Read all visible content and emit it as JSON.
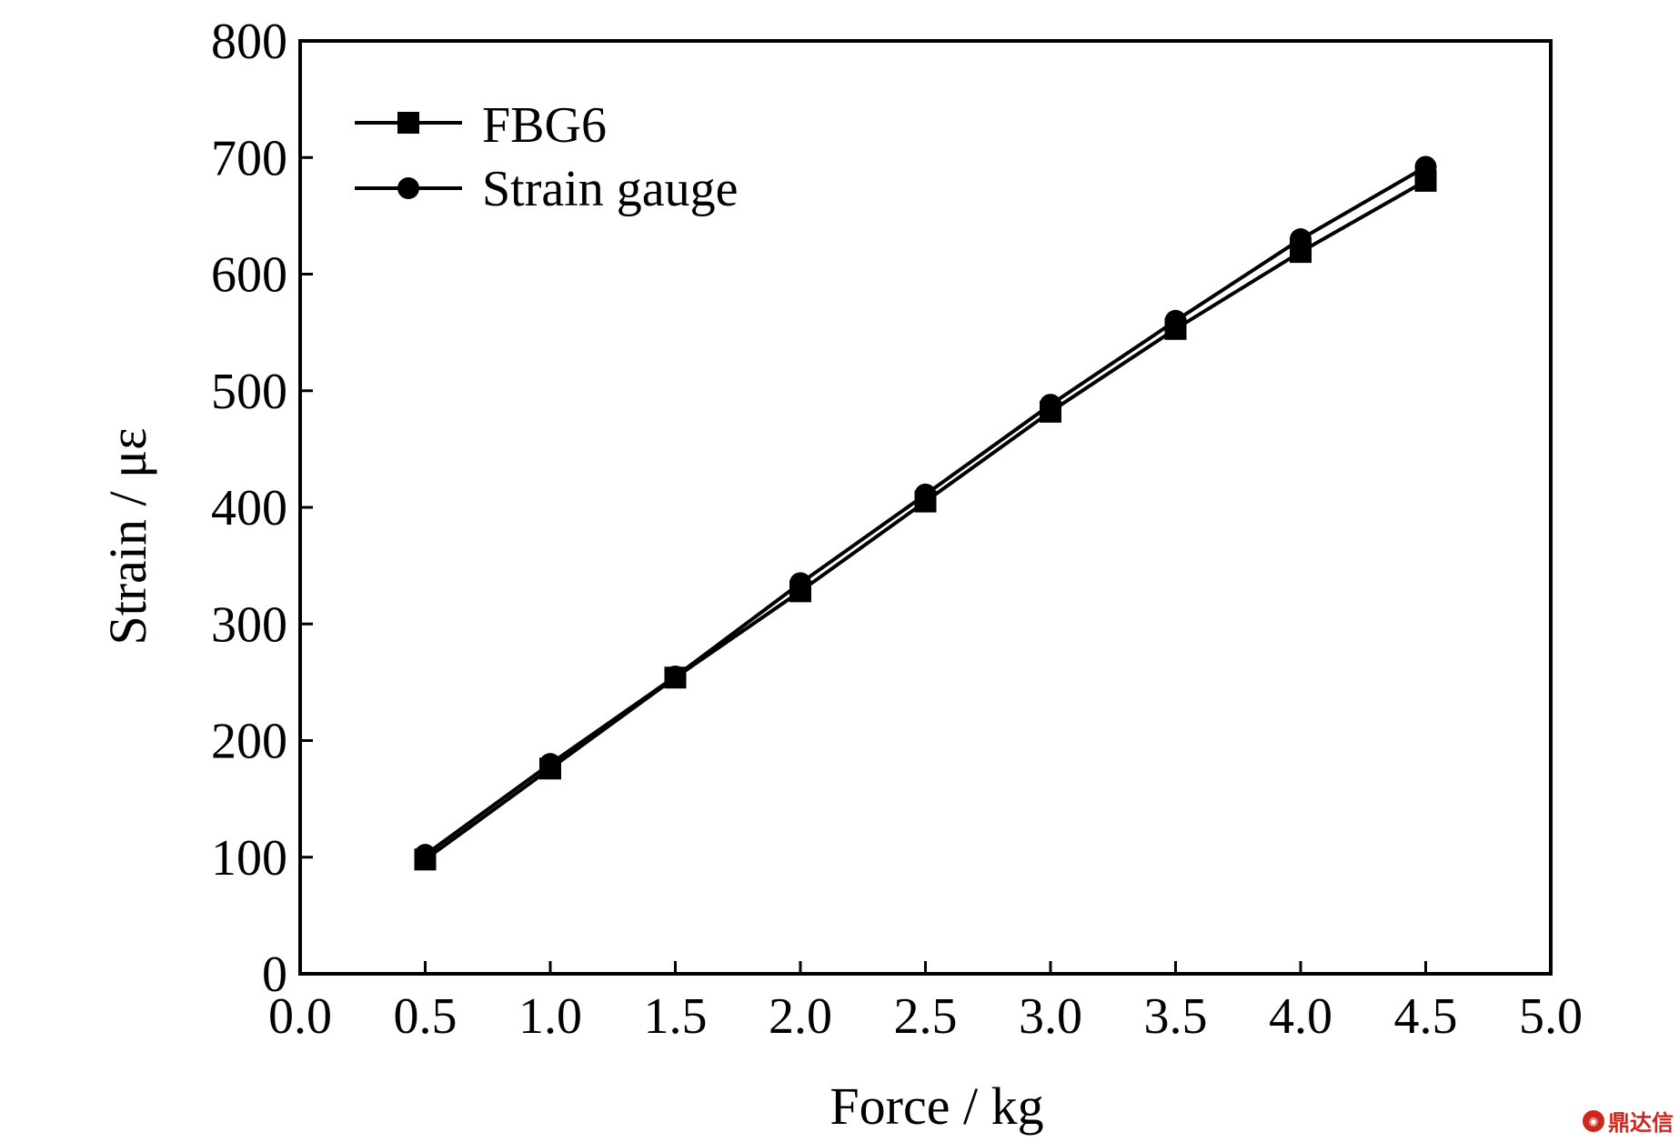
{
  "chart_data": {
    "type": "line",
    "title": "",
    "xlabel": "Force / kg",
    "ylabel": "Strain / με",
    "xlim": [
      0.0,
      5.0
    ],
    "ylim": [
      0,
      800
    ],
    "xticks": [
      "0.0",
      "0.5",
      "1.0",
      "1.5",
      "2.0",
      "2.5",
      "3.0",
      "3.5",
      "4.0",
      "4.5",
      "5.0"
    ],
    "yticks": [
      "0",
      "100",
      "200",
      "300",
      "400",
      "500",
      "600",
      "700",
      "800"
    ],
    "grid": false,
    "legend_position": "top-left",
    "series": [
      {
        "name": "FBG6",
        "marker": "square",
        "color": "#000000",
        "x": [
          0.5,
          1.0,
          1.5,
          2.0,
          2.5,
          3.0,
          3.5,
          4.0,
          4.5
        ],
        "y": [
          98,
          176,
          254,
          328,
          405,
          482,
          553,
          619,
          680
        ]
      },
      {
        "name": "Strain gauge",
        "marker": "circle",
        "color": "#000000",
        "x": [
          0.5,
          1.0,
          1.5,
          2.0,
          2.5,
          3.0,
          3.5,
          4.0,
          4.5
        ],
        "y": [
          102,
          180,
          255,
          335,
          411,
          488,
          560,
          630,
          692
        ]
      }
    ]
  },
  "watermark": {
    "text": "鼎达信",
    "logo_icon": "dingdaxin-logo-icon"
  }
}
